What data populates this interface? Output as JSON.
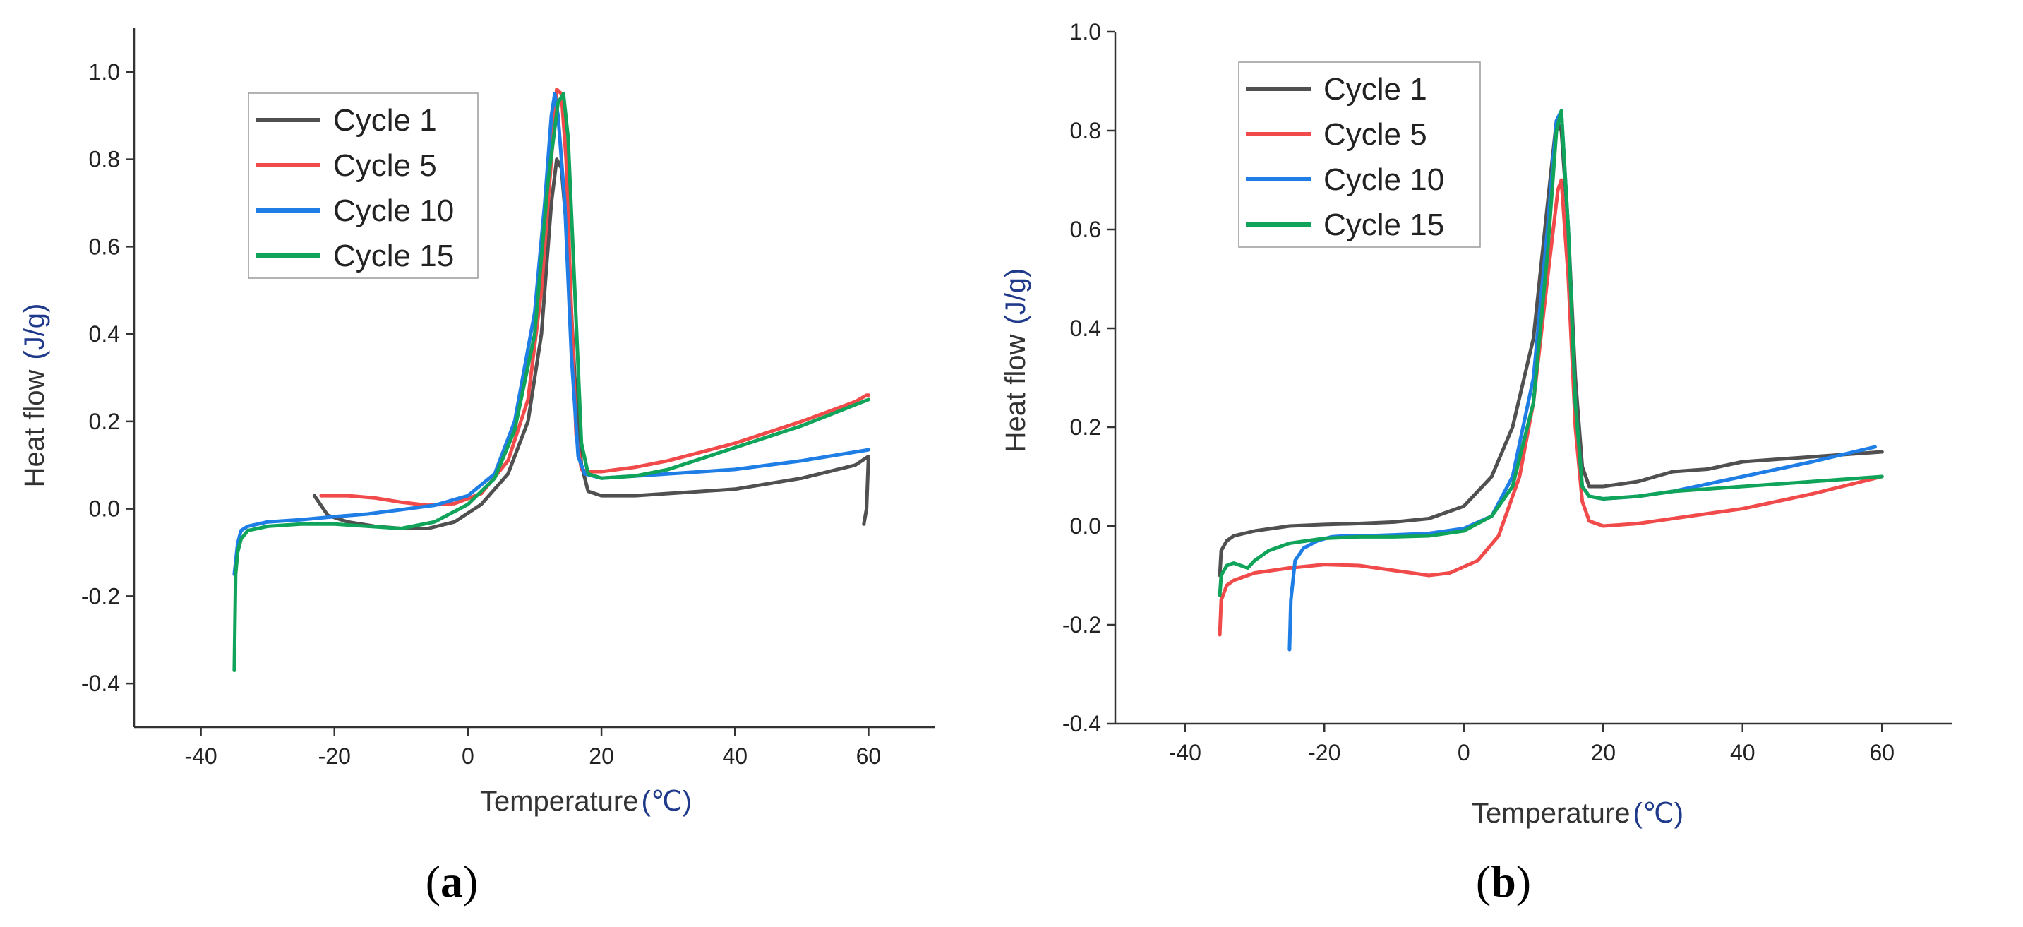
{
  "chart_data": [
    {
      "type": "line",
      "panel_label": "a",
      "xlabel": "Temperature",
      "xlabel_unit": "(℃)",
      "ylabel": "Heat flow",
      "ylabel_unit": "(J/g)",
      "xlim": [
        -50,
        70
      ],
      "ylim": [
        -0.5,
        1.1
      ],
      "xticks": [
        -40,
        -20,
        0,
        20,
        40,
        60
      ],
      "yticks": [
        -0.4,
        -0.2,
        0.0,
        0.2,
        0.4,
        0.6,
        0.8,
        1.0
      ],
      "xtick_labels": [
        "-40",
        "-20",
        "0",
        "20",
        "40",
        "60"
      ],
      "ytick_labels": [
        "-0.4",
        "-0.2",
        "0.0",
        "0.2",
        "0.4",
        "0.6",
        "0.8",
        "1.0"
      ],
      "legend_position": "top-left",
      "series": [
        {
          "name": "Cycle 1",
          "color": "#505050",
          "x": [
            -23,
            -21,
            -18,
            -14,
            -10,
            -6,
            -2,
            2,
            6,
            9,
            11,
            12.5,
            13.3,
            14,
            15,
            16,
            17,
            18,
            20,
            25,
            30,
            40,
            50,
            58,
            59.5,
            60,
            59.7,
            59.3
          ],
          "y": [
            0.03,
            -0.015,
            -0.03,
            -0.04,
            -0.045,
            -0.045,
            -0.03,
            0.01,
            0.08,
            0.2,
            0.4,
            0.7,
            0.8,
            0.78,
            0.6,
            0.3,
            0.1,
            0.04,
            0.03,
            0.03,
            0.035,
            0.045,
            0.07,
            0.1,
            0.115,
            0.12,
            0.0,
            -0.035
          ]
        },
        {
          "name": "Cycle 5",
          "color": "#f04a4a",
          "x": [
            -22,
            -18,
            -14,
            -10,
            -6,
            -2,
            2,
            6,
            9,
            11,
            12.5,
            13.3,
            14,
            14.7,
            15.5,
            16.2,
            17,
            18,
            20,
            25,
            30,
            40,
            50,
            58,
            59.7,
            60
          ],
          "y": [
            0.03,
            0.03,
            0.025,
            0.015,
            0.008,
            0.012,
            0.035,
            0.11,
            0.25,
            0.5,
            0.8,
            0.96,
            0.95,
            0.8,
            0.45,
            0.17,
            0.09,
            0.085,
            0.085,
            0.095,
            0.11,
            0.15,
            0.2,
            0.245,
            0.26,
            0.26
          ]
        },
        {
          "name": "Cycle 10",
          "color": "#1e7ee6",
          "x": [
            -35,
            -34.5,
            -34,
            -33,
            -30,
            -25,
            -20,
            -15,
            -10,
            -5,
            0,
            4,
            7,
            10,
            11.5,
            12.5,
            13,
            13.5,
            14.5,
            15.5,
            16.5,
            17.5,
            20,
            25,
            30,
            40,
            50,
            60
          ],
          "y": [
            -0.15,
            -0.08,
            -0.05,
            -0.04,
            -0.03,
            -0.025,
            -0.018,
            -0.012,
            -0.002,
            0.008,
            0.03,
            0.08,
            0.2,
            0.45,
            0.7,
            0.9,
            0.95,
            0.9,
            0.7,
            0.35,
            0.12,
            0.08,
            0.07,
            0.075,
            0.08,
            0.09,
            0.11,
            0.135
          ]
        },
        {
          "name": "Cycle 15",
          "color": "#10a35a",
          "x": [
            -35,
            -34.8,
            -34.5,
            -34,
            -33,
            -30,
            -25,
            -20,
            -15,
            -10,
            -5,
            0,
            4,
            7,
            10,
            12,
            13.5,
            14.3,
            15,
            16,
            17,
            18,
            20,
            25,
            30,
            40,
            50,
            60
          ],
          "y": [
            -0.37,
            -0.15,
            -0.1,
            -0.07,
            -0.05,
            -0.04,
            -0.035,
            -0.035,
            -0.04,
            -0.045,
            -0.03,
            0.01,
            0.07,
            0.18,
            0.4,
            0.75,
            0.93,
            0.95,
            0.85,
            0.5,
            0.15,
            0.08,
            0.07,
            0.075,
            0.09,
            0.14,
            0.19,
            0.25
          ]
        }
      ]
    },
    {
      "type": "line",
      "panel_label": "b",
      "xlabel": "Temperature",
      "xlabel_unit": "(℃)",
      "ylabel": "Heat flow",
      "ylabel_unit": "(J/g)",
      "xlim": [
        -50,
        70
      ],
      "ylim": [
        -0.4,
        1.0
      ],
      "xticks": [
        -40,
        -20,
        0,
        20,
        40,
        60
      ],
      "yticks": [
        -0.4,
        -0.2,
        0.0,
        0.2,
        0.4,
        0.6,
        0.8,
        1.0
      ],
      "xtick_labels": [
        "-40",
        "-20",
        "0",
        "20",
        "40",
        "60"
      ],
      "ytick_labels": [
        "-0.4",
        "-0.2",
        "0.0",
        "0.2",
        "0.4",
        "0.6",
        "0.8",
        "1.0"
      ],
      "legend_position": "top-left",
      "series": [
        {
          "name": "Cycle 1",
          "color": "#505050",
          "x": [
            -35,
            -34.8,
            -34,
            -33,
            -30,
            -25,
            -20,
            -15,
            -10,
            -5,
            0,
            4,
            7,
            10,
            12,
            13.3,
            14,
            15,
            16,
            17,
            18,
            20,
            25,
            30,
            35,
            40,
            45,
            50,
            55,
            60
          ],
          "y": [
            -0.1,
            -0.05,
            -0.03,
            -0.02,
            -0.01,
            0.0,
            0.003,
            0.005,
            0.008,
            0.015,
            0.04,
            0.1,
            0.2,
            0.38,
            0.65,
            0.82,
            0.8,
            0.6,
            0.3,
            0.12,
            0.08,
            0.08,
            0.09,
            0.11,
            0.115,
            0.13,
            0.135,
            0.14,
            0.145,
            0.15
          ]
        },
        {
          "name": "Cycle 5",
          "color": "#f04a4a",
          "x": [
            -35,
            -34.8,
            -34,
            -33,
            -30,
            -25,
            -20,
            -15,
            -10,
            -5,
            -2,
            2,
            5,
            8,
            10,
            12,
            13.5,
            14,
            15,
            16,
            17,
            18,
            20,
            25,
            30,
            40,
            50,
            60
          ],
          "y": [
            -0.22,
            -0.15,
            -0.12,
            -0.11,
            -0.095,
            -0.085,
            -0.078,
            -0.08,
            -0.09,
            -0.1,
            -0.095,
            -0.07,
            -0.02,
            0.1,
            0.25,
            0.5,
            0.68,
            0.7,
            0.5,
            0.2,
            0.05,
            0.01,
            0.0,
            0.005,
            0.015,
            0.035,
            0.065,
            0.1
          ]
        },
        {
          "name": "Cycle 10",
          "color": "#1e7ee6",
          "x": [
            -25,
            -24.8,
            -24.2,
            -23,
            -21,
            -19,
            -17,
            -14,
            -10,
            -5,
            0,
            4,
            7,
            10,
            12,
            13.3,
            14,
            15,
            16,
            17,
            18,
            20,
            25,
            30,
            40,
            50,
            59
          ],
          "y": [
            -0.25,
            -0.15,
            -0.07,
            -0.045,
            -0.03,
            -0.022,
            -0.02,
            -0.02,
            -0.018,
            -0.015,
            -0.005,
            0.02,
            0.1,
            0.3,
            0.6,
            0.82,
            0.84,
            0.6,
            0.25,
            0.08,
            0.06,
            0.055,
            0.06,
            0.07,
            0.1,
            0.13,
            0.16
          ]
        },
        {
          "name": "Cycle 15",
          "color": "#10a35a",
          "x": [
            -35,
            -34.8,
            -34,
            -33,
            -32,
            -31,
            -30,
            -28,
            -25,
            -20,
            -15,
            -10,
            -5,
            0,
            4,
            7,
            10,
            12,
            13.3,
            14,
            15,
            16,
            17,
            18,
            20,
            25,
            30,
            40,
            50,
            60
          ],
          "y": [
            -0.14,
            -0.1,
            -0.08,
            -0.075,
            -0.08,
            -0.085,
            -0.07,
            -0.05,
            -0.035,
            -0.025,
            -0.022,
            -0.022,
            -0.02,
            -0.01,
            0.02,
            0.08,
            0.25,
            0.55,
            0.8,
            0.84,
            0.6,
            0.25,
            0.08,
            0.06,
            0.055,
            0.06,
            0.07,
            0.08,
            0.09,
            0.1
          ]
        }
      ]
    }
  ]
}
